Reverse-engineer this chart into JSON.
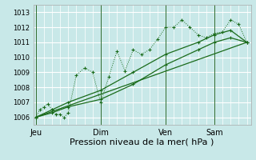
{
  "background_color": "#c8e8e8",
  "grid_color": "#ffffff",
  "line_color": "#1a6b1a",
  "xlabel": "Pression niveau de la mer( hPa )",
  "ylim": [
    1005.5,
    1013.5
  ],
  "yticks": [
    1006,
    1007,
    1008,
    1009,
    1010,
    1011,
    1012,
    1013
  ],
  "day_labels": [
    "Jeu",
    "Dim",
    "Ven",
    "Sam"
  ],
  "day_positions": [
    0,
    8,
    16,
    22
  ],
  "xlim": [
    -0.3,
    26.5
  ],
  "series1_x": [
    0,
    0.5,
    1,
    1.5,
    2,
    2.5,
    3,
    3.5,
    4,
    5,
    6,
    7,
    8,
    9,
    10,
    11,
    12,
    13,
    14,
    15,
    16,
    17,
    18,
    19,
    20,
    21,
    22,
    23,
    24,
    25,
    26
  ],
  "series1_y": [
    1006.0,
    1006.5,
    1006.7,
    1006.9,
    1006.5,
    1006.2,
    1006.2,
    1006.0,
    1006.3,
    1008.8,
    1009.3,
    1009.0,
    1007.0,
    1008.7,
    1010.4,
    1009.1,
    1010.5,
    1010.2,
    1010.5,
    1011.2,
    1012.0,
    1012.0,
    1012.5,
    1012.0,
    1011.5,
    1011.3,
    1011.6,
    1011.7,
    1012.5,
    1012.2,
    1011.0
  ],
  "series2_x": [
    0,
    2,
    4,
    8,
    12,
    16,
    20,
    22,
    24,
    26
  ],
  "series2_y": [
    1006.0,
    1006.3,
    1006.7,
    1007.2,
    1008.2,
    1009.5,
    1010.5,
    1011.0,
    1011.3,
    1011.0
  ],
  "series3_x": [
    0,
    2,
    4,
    8,
    12,
    16,
    20,
    22,
    24,
    26
  ],
  "series3_y": [
    1006.0,
    1006.5,
    1007.0,
    1007.8,
    1009.0,
    1010.2,
    1011.0,
    1011.5,
    1011.8,
    1011.0
  ],
  "series4_x": [
    0,
    26
  ],
  "series4_y": [
    1006.0,
    1011.0
  ],
  "xlabel_fontsize": 8,
  "ytick_fontsize": 6,
  "xtick_fontsize": 7
}
